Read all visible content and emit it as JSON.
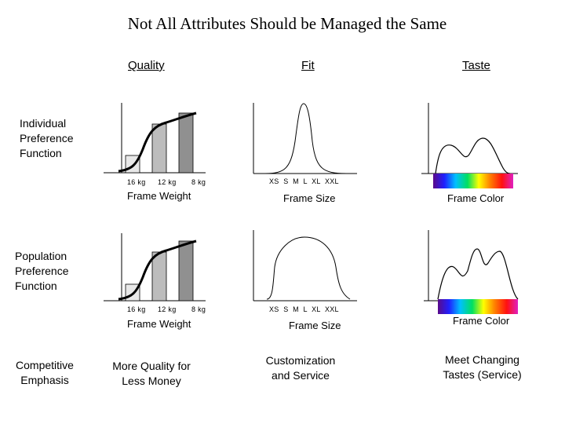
{
  "title": "Not All Attributes Should be Managed the Same",
  "columns": {
    "quality": "Quality",
    "fit": "Fit",
    "taste": "Taste"
  },
  "rows": {
    "individual": "Individual Preference Function",
    "population": "Population Preference Function",
    "competitive": "Competitive Emphasis"
  },
  "weight_ticks": [
    "16 kg",
    "12 kg",
    "8 kg"
  ],
  "size_ticks": "XS  S  M  L  XL  XXL",
  "captions": {
    "weight": "Frame Weight",
    "size": "Frame Size",
    "color": "Frame Color"
  },
  "emphasis": {
    "quality": "More Quality for Less Money",
    "fit": "Customization and Service",
    "taste": "Meet Changing Tastes (Service)"
  },
  "spectrum_colors": [
    "#5a0a8a",
    "#2020ff",
    "#00c0ff",
    "#00e060",
    "#ffff00",
    "#ff8000",
    "#ff1010",
    "#e020c0"
  ]
}
